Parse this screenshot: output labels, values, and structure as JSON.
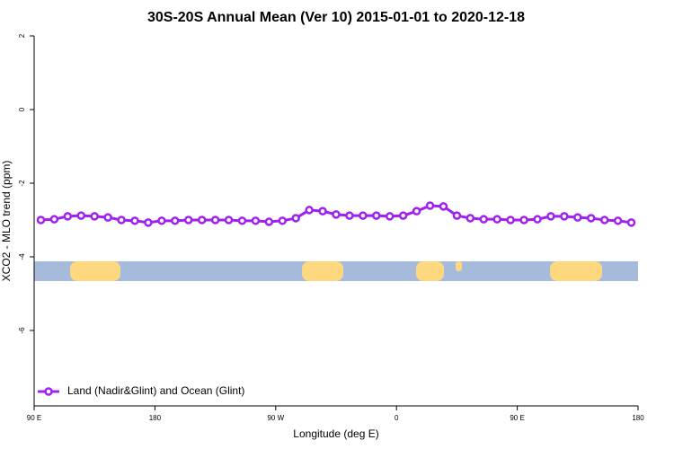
{
  "chart_data": {
    "type": "line",
    "title": "30S-20S Annual Mean (Ver 10)   2015-01-01 to 2020-12-18",
    "x_label": "Longitude (deg E)",
    "y_label": "XCO2 - MLO trend (ppm)",
    "xlim": [
      90,
      540
    ],
    "xticks": [
      {
        "value": 90,
        "label": "90 E"
      },
      180,
      {
        "value": 270,
        "label": "90 W"
      },
      {
        "value": 360,
        "label": "0"
      },
      {
        "value": 450,
        "label": "90 E"
      },
      {
        "value": 540,
        "label": "180"
      }
    ],
    "ylim": [
      -8,
      2
    ],
    "yticks": [
      2,
      0,
      -2,
      -4,
      -6
    ],
    "legend": "bottom-left",
    "series": [
      {
        "name": "Land (Nadir&Glint) and Ocean (Glint)",
        "color": "#a020f0",
        "x": [
          95,
          105,
          115,
          125,
          135,
          145,
          155,
          165,
          175,
          185,
          195,
          205,
          215,
          225,
          235,
          245,
          255,
          265,
          275,
          285,
          295,
          305,
          315,
          325,
          335,
          345,
          355,
          365,
          375,
          385,
          395,
          405,
          415,
          425,
          435,
          445,
          455,
          465,
          475,
          485,
          495,
          505,
          515,
          525,
          535
        ],
        "values": [
          -3.0,
          -2.98,
          -2.9,
          -2.88,
          -2.9,
          -2.93,
          -3.0,
          -3.02,
          -3.07,
          -3.02,
          -3.02,
          -3.0,
          -3.0,
          -3.0,
          -3.0,
          -3.02,
          -3.02,
          -3.05,
          -3.02,
          -2.95,
          -2.73,
          -2.76,
          -2.85,
          -2.88,
          -2.88,
          -2.88,
          -2.9,
          -2.88,
          -2.76,
          -2.61,
          -2.63,
          -2.88,
          -2.95,
          -2.98,
          -2.98,
          -3.0,
          -3.0,
          -2.98,
          -2.9,
          -2.9,
          -2.93,
          -2.95,
          -3.0,
          -3.02,
          -3.07
        ]
      }
    ]
  }
}
